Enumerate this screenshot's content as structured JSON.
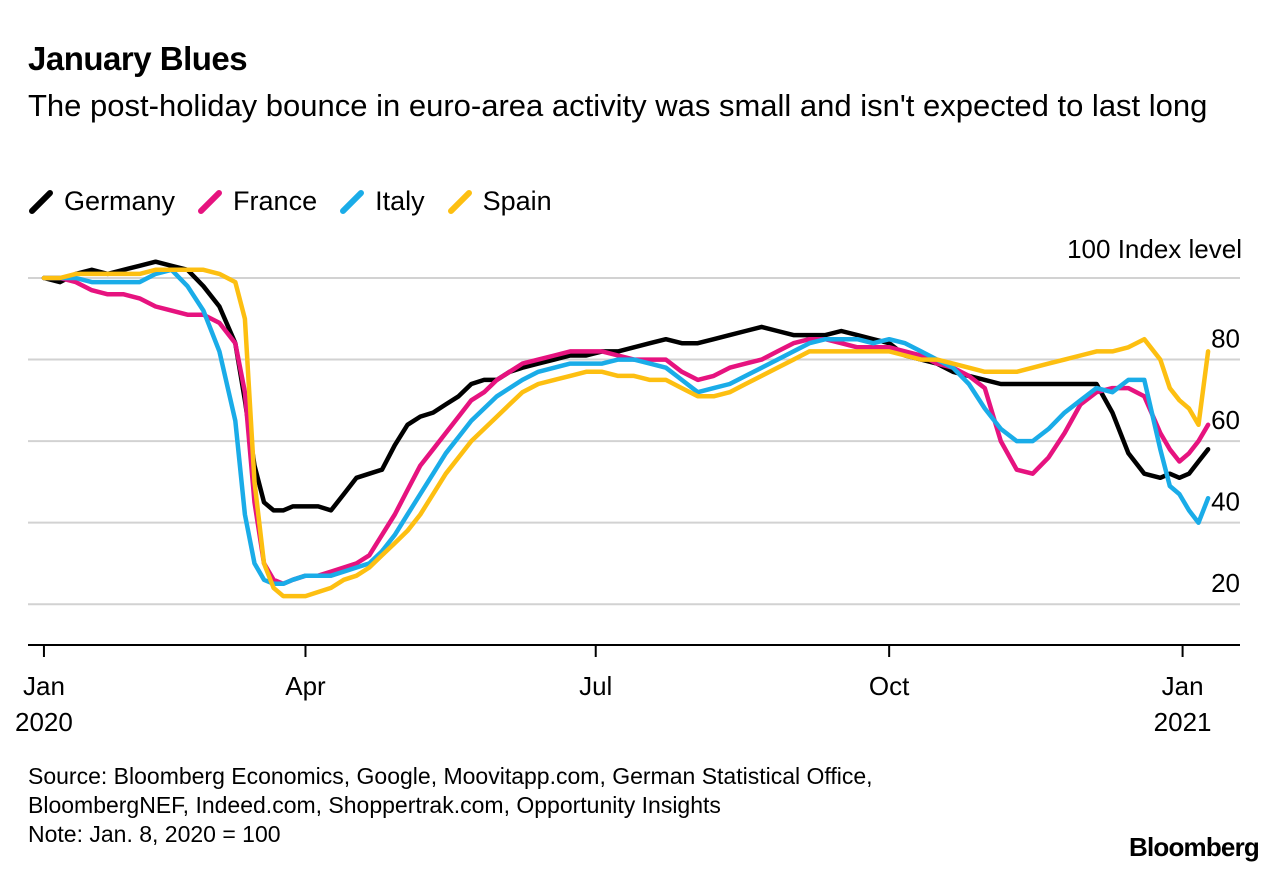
{
  "title": "January Blues",
  "subtitle": "The post-holiday bounce in euro-area activity was small and isn't expected to last long",
  "source_lines": [
    "Source: Bloomberg Economics, Google, Moovitapp.com, German Statistical Office,",
    "BloombergNEF, Indeed.com, Shoppertrak.com, Opportunity Insights",
    "Note: Jan. 8, 2020 = 100"
  ],
  "brand": "Bloomberg",
  "chart_data": {
    "type": "line",
    "title": "January Blues",
    "ylabel": "Index level",
    "ylim": [
      10,
      100
    ],
    "yticks": [
      20,
      40,
      60,
      80
    ],
    "top_label": "100 Index level",
    "xrange": [
      -5,
      375
    ],
    "xticks": [
      {
        "day": 0,
        "line1": "Jan",
        "line2": "2020"
      },
      {
        "day": 82,
        "line1": "Apr",
        "line2": ""
      },
      {
        "day": 173,
        "line1": "Jul",
        "line2": ""
      },
      {
        "day": 265,
        "line1": "Oct",
        "line2": ""
      },
      {
        "day": 357,
        "line1": "Jan",
        "line2": "2021"
      }
    ],
    "series": [
      {
        "name": "Germany",
        "color": "#000000",
        "x": [
          0,
          5,
          10,
          15,
          20,
          25,
          30,
          35,
          40,
          45,
          50,
          55,
          60,
          63,
          66,
          69,
          72,
          75,
          78,
          82,
          86,
          90,
          94,
          98,
          102,
          106,
          110,
          114,
          118,
          122,
          126,
          130,
          134,
          138,
          142,
          146,
          150,
          155,
          160,
          165,
          170,
          175,
          180,
          185,
          190,
          195,
          200,
          205,
          210,
          215,
          220,
          225,
          230,
          235,
          240,
          245,
          250,
          255,
          260,
          265,
          270,
          275,
          280,
          285,
          290,
          295,
          300,
          305,
          310,
          315,
          320,
          325,
          330,
          335,
          340,
          345,
          350,
          353,
          356,
          359,
          362,
          365
        ],
        "values": [
          100,
          99,
          101,
          102,
          101,
          102,
          103,
          104,
          103,
          102,
          98,
          93,
          84,
          70,
          54,
          45,
          43,
          43,
          44,
          44,
          44,
          43,
          47,
          51,
          52,
          53,
          59,
          64,
          66,
          67,
          69,
          71,
          74,
          75,
          75,
          77,
          78,
          79,
          80,
          81,
          81,
          82,
          82,
          83,
          84,
          85,
          84,
          84,
          85,
          86,
          87,
          88,
          87,
          86,
          86,
          86,
          87,
          86,
          85,
          84,
          81,
          80,
          79,
          77,
          76,
          75,
          74,
          74,
          74,
          74,
          74,
          74,
          74,
          67,
          57,
          52,
          51,
          52,
          51,
          52,
          55,
          58
        ]
      },
      {
        "name": "France",
        "color": "#e6137f",
        "x": [
          0,
          5,
          10,
          15,
          20,
          25,
          30,
          35,
          40,
          45,
          50,
          55,
          60,
          63,
          66,
          69,
          72,
          75,
          78,
          82,
          86,
          90,
          94,
          98,
          102,
          106,
          110,
          114,
          118,
          122,
          126,
          130,
          134,
          138,
          142,
          146,
          150,
          155,
          160,
          165,
          170,
          175,
          180,
          185,
          190,
          195,
          200,
          205,
          210,
          215,
          220,
          225,
          230,
          235,
          240,
          245,
          250,
          255,
          260,
          265,
          270,
          275,
          280,
          285,
          290,
          295,
          300,
          305,
          310,
          315,
          320,
          325,
          330,
          335,
          340,
          345,
          350,
          353,
          356,
          359,
          362,
          365
        ],
        "values": [
          100,
          100,
          99,
          97,
          96,
          96,
          95,
          93,
          92,
          91,
          91,
          89,
          84,
          72,
          45,
          30,
          26,
          25,
          26,
          27,
          27,
          28,
          29,
          30,
          32,
          37,
          42,
          48,
          54,
          58,
          62,
          66,
          70,
          72,
          75,
          77,
          79,
          80,
          81,
          82,
          82,
          82,
          81,
          80,
          80,
          80,
          77,
          75,
          76,
          78,
          79,
          80,
          82,
          84,
          85,
          85,
          84,
          83,
          83,
          83,
          82,
          81,
          79,
          78,
          76,
          73,
          60,
          53,
          52,
          56,
          62,
          69,
          72,
          73,
          73,
          71,
          62,
          58,
          55,
          57,
          60,
          64
        ]
      },
      {
        "name": "Italy",
        "color": "#1aace8",
        "x": [
          0,
          5,
          10,
          15,
          20,
          25,
          30,
          35,
          40,
          45,
          50,
          55,
          60,
          63,
          66,
          69,
          72,
          75,
          78,
          82,
          86,
          90,
          94,
          98,
          102,
          106,
          110,
          114,
          118,
          122,
          126,
          130,
          134,
          138,
          142,
          146,
          150,
          155,
          160,
          165,
          170,
          175,
          180,
          185,
          190,
          195,
          200,
          205,
          210,
          215,
          220,
          225,
          230,
          235,
          240,
          245,
          250,
          255,
          260,
          265,
          270,
          275,
          280,
          285,
          290,
          295,
          300,
          305,
          310,
          315,
          320,
          325,
          330,
          335,
          340,
          345,
          350,
          353,
          356,
          359,
          362,
          365
        ],
        "values": [
          100,
          100,
          100,
          99,
          99,
          99,
          99,
          101,
          102,
          98,
          92,
          82,
          65,
          42,
          30,
          26,
          25,
          25,
          26,
          27,
          27,
          27,
          28,
          29,
          30,
          33,
          37,
          42,
          47,
          52,
          57,
          61,
          65,
          68,
          71,
          73,
          75,
          77,
          78,
          79,
          79,
          79,
          80,
          80,
          79,
          78,
          75,
          72,
          73,
          74,
          76,
          78,
          80,
          82,
          84,
          85,
          85,
          85,
          84,
          85,
          84,
          82,
          80,
          78,
          74,
          68,
          63,
          60,
          60,
          63,
          67,
          70,
          73,
          72,
          75,
          75,
          58,
          49,
          47,
          43,
          40,
          46
        ]
      },
      {
        "name": "Spain",
        "color": "#fdbf11",
        "x": [
          0,
          5,
          10,
          15,
          20,
          25,
          30,
          35,
          40,
          45,
          50,
          55,
          60,
          63,
          66,
          69,
          72,
          75,
          78,
          82,
          86,
          90,
          94,
          98,
          102,
          106,
          110,
          114,
          118,
          122,
          126,
          130,
          134,
          138,
          142,
          146,
          150,
          155,
          160,
          165,
          170,
          175,
          180,
          185,
          190,
          195,
          200,
          205,
          210,
          215,
          220,
          225,
          230,
          235,
          240,
          245,
          250,
          255,
          260,
          265,
          270,
          275,
          280,
          285,
          290,
          295,
          300,
          305,
          310,
          315,
          320,
          325,
          330,
          335,
          340,
          345,
          350,
          353,
          356,
          359,
          362,
          365
        ],
        "values": [
          100,
          100,
          101,
          101,
          101,
          101,
          101,
          102,
          102,
          102,
          102,
          101,
          99,
          90,
          50,
          30,
          24,
          22,
          22,
          22,
          23,
          24,
          26,
          27,
          29,
          32,
          35,
          38,
          42,
          47,
          52,
          56,
          60,
          63,
          66,
          69,
          72,
          74,
          75,
          76,
          77,
          77,
          76,
          76,
          75,
          75,
          73,
          71,
          71,
          72,
          74,
          76,
          78,
          80,
          82,
          82,
          82,
          82,
          82,
          82,
          81,
          80,
          80,
          79,
          78,
          77,
          77,
          77,
          78,
          79,
          80,
          81,
          82,
          82,
          83,
          85,
          80,
          73,
          70,
          68,
          64,
          82
        ]
      }
    ]
  }
}
